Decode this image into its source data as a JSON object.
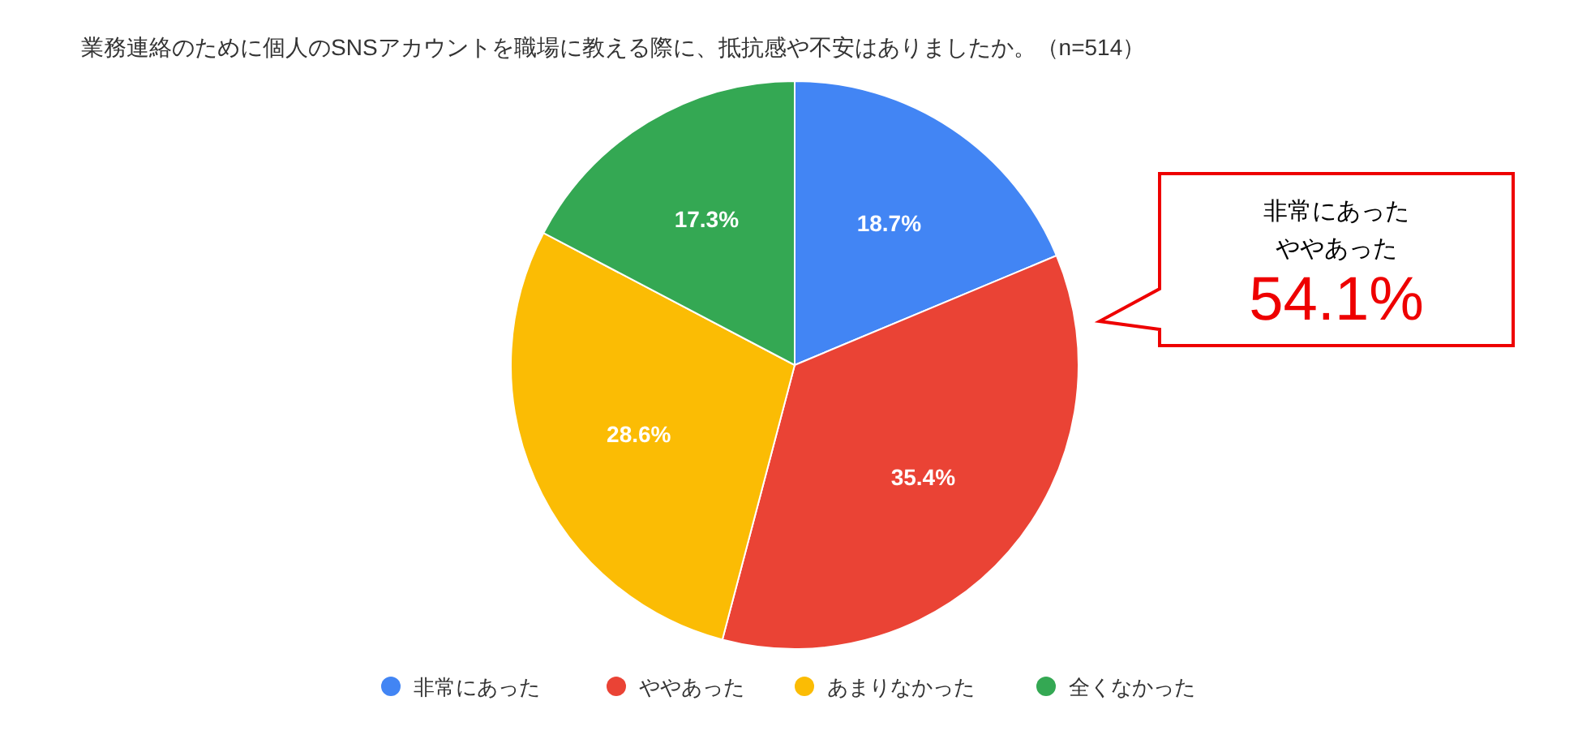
{
  "chart_data": {
    "type": "pie",
    "title": "業務連絡のために個人のSNSアカウントを職場に教える際に、抵抗感や不安はありましたか。（n=514）",
    "categories": [
      "非常にあった",
      "ややあった",
      "あまりなかった",
      "全くなかった"
    ],
    "values": [
      18.7,
      35.4,
      28.6,
      17.3
    ],
    "colors": [
      "#4285f4",
      "#ea4335",
      "#fbbc04",
      "#34a853"
    ],
    "value_labels": [
      "18.7%",
      "35.4%",
      "28.6%",
      "17.3%"
    ],
    "legend": "bottom",
    "annotations": [
      "非常にあった",
      "ややあった",
      "54.1%"
    ]
  }
}
